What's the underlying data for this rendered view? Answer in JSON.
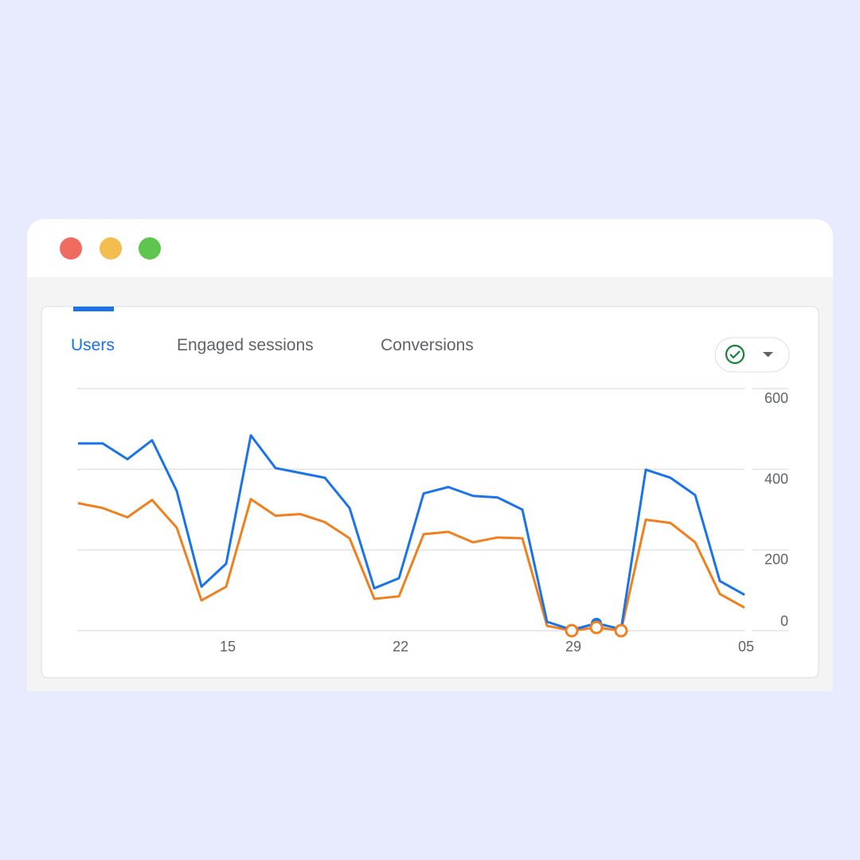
{
  "tabs": [
    "Users",
    "Engaged sessions",
    "Conversions"
  ],
  "chart_data": {
    "type": "line",
    "categories": [
      null,
      null,
      null,
      null,
      null,
      null,
      "15",
      null,
      null,
      null,
      null,
      null,
      null,
      "22",
      null,
      null,
      null,
      null,
      null,
      null,
      "29",
      null,
      null,
      null,
      null,
      null,
      null,
      "05"
    ],
    "series": [
      {
        "color": "#1a73e8",
        "values": [
          464,
          464,
          425,
          472,
          346,
          109,
          166,
          484,
          403,
          391,
          379,
          304,
          105,
          130,
          340,
          356,
          334,
          330,
          300,
          22,
          2,
          18,
          4,
          399,
          379,
          336,
          123,
          89
        ]
      },
      {
        "color": "#f07f1e",
        "values": [
          316,
          304,
          281,
          324,
          255,
          75,
          109,
          326,
          285,
          289,
          269,
          229,
          79,
          85,
          239,
          245,
          219,
          231,
          229,
          12,
          0,
          8,
          0,
          275,
          267,
          219,
          91,
          57
        ]
      }
    ],
    "ylim": [
      0,
      600
    ],
    "yticks": [
      600,
      400,
      200,
      0
    ],
    "grid": true
  }
}
